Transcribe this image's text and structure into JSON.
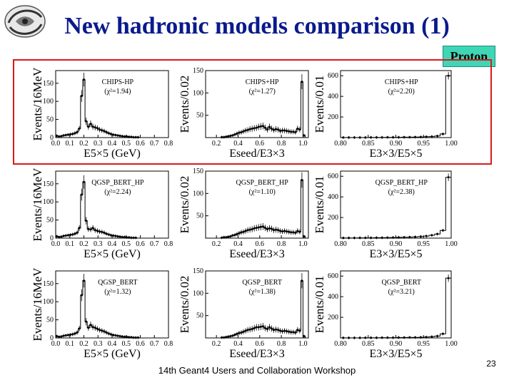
{
  "slide": {
    "title": "New hadronic models comparison (1)",
    "badge": "Proton",
    "footer": "14th Geant4 Users and Collaboration Workshop",
    "page_number": "23"
  },
  "colors": {
    "title": "#0a1a8c",
    "badge_bg": "#3fd6b6",
    "highlight_box": "#d81a1a"
  },
  "icons": {
    "logo": "institution-logo-swirl"
  },
  "chart_data": [
    {
      "type": "histogram",
      "row": 1,
      "col": 1,
      "model": "CHIPS-HP",
      "chi2": "(χ²=1.94)",
      "ylabel": "Events/16MeV",
      "xlabel": "E5×5 (GeV)",
      "xlim": [
        0,
        0.8
      ],
      "ylim": [
        0,
        185
      ],
      "xticks": [
        "0.0",
        "0.1",
        "0.2",
        "0.3",
        "0.4",
        "0.5",
        "0.6",
        "0.7",
        "0.8"
      ],
      "yticks": [
        "0",
        "50",
        "100",
        "150"
      ],
      "x": [
        0.008,
        0.024,
        0.04,
        0.056,
        0.072,
        0.088,
        0.104,
        0.12,
        0.136,
        0.152,
        0.168,
        0.184,
        0.2,
        0.216,
        0.232,
        0.248,
        0.264,
        0.28,
        0.296,
        0.312,
        0.328,
        0.344,
        0.36,
        0.376,
        0.392,
        0.408,
        0.424,
        0.44,
        0.456,
        0.472,
        0.488,
        0.504,
        0.52,
        0.536,
        0.552,
        0.568,
        0.584,
        0.6
      ],
      "y": [
        5,
        3,
        4,
        6,
        7,
        8,
        9,
        10,
        12,
        15,
        25,
        115,
        160,
        45,
        30,
        38,
        30,
        28,
        26,
        22,
        20,
        18,
        15,
        12,
        10,
        8,
        7,
        6,
        5,
        4,
        3,
        3,
        2,
        2,
        1,
        1,
        1,
        0
      ]
    },
    {
      "type": "histogram",
      "row": 1,
      "col": 2,
      "model": "CHIPS+HP",
      "chi2": "(χ²=1.27)",
      "ylabel": "Events/0.02",
      "xlabel": "Eseed/E3×3",
      "xlim": [
        0.1,
        1.05
      ],
      "ylim": [
        0,
        150
      ],
      "xticks": [
        "0.2",
        "0.4",
        "0.6",
        "0.8",
        "1.0"
      ],
      "yticks": [
        "50",
        "100",
        "150"
      ],
      "x": [
        0.11,
        0.13,
        0.15,
        0.17,
        0.19,
        0.21,
        0.23,
        0.25,
        0.27,
        0.29,
        0.31,
        0.33,
        0.35,
        0.37,
        0.39,
        0.41,
        0.43,
        0.45,
        0.47,
        0.49,
        0.51,
        0.53,
        0.55,
        0.57,
        0.59,
        0.61,
        0.63,
        0.65,
        0.67,
        0.69,
        0.71,
        0.73,
        0.75,
        0.77,
        0.79,
        0.81,
        0.83,
        0.85,
        0.87,
        0.89,
        0.91,
        0.93,
        0.95,
        0.97,
        0.99,
        1.01
      ],
      "y": [
        0,
        0,
        0,
        0,
        0,
        0,
        0,
        1,
        1,
        2,
        3,
        4,
        5,
        7,
        9,
        11,
        12,
        14,
        16,
        17,
        19,
        20,
        21,
        22,
        24,
        25,
        26,
        22,
        18,
        24,
        20,
        17,
        19,
        18,
        15,
        16,
        16,
        15,
        14,
        13,
        13,
        12,
        20,
        18,
        125,
        5
      ]
    },
    {
      "type": "histogram",
      "row": 1,
      "col": 3,
      "model": "CHIPS+HP",
      "chi2": "(χ²=2.20)",
      "ylabel": "Events/0.01",
      "xlabel": "E3×3/E5×5",
      "xlim": [
        0.8,
        1.0
      ],
      "ylim": [
        0,
        650
      ],
      "xticks": [
        "0.80",
        "0.85",
        "0.90",
        "0.95",
        "1.00"
      ],
      "yticks": [
        "200",
        "400",
        "600"
      ],
      "x": [
        0.805,
        0.815,
        0.825,
        0.835,
        0.845,
        0.855,
        0.865,
        0.875,
        0.885,
        0.895,
        0.905,
        0.915,
        0.925,
        0.935,
        0.945,
        0.955,
        0.965,
        0.975,
        0.985,
        0.995
      ],
      "y": [
        1,
        1,
        1,
        1,
        1,
        2,
        2,
        2,
        3,
        3,
        3,
        4,
        4,
        5,
        6,
        8,
        10,
        15,
        35,
        600
      ]
    },
    {
      "type": "histogram",
      "row": 2,
      "col": 1,
      "model": "QGSP_BERT_HP",
      "chi2": "(χ²=2.24)",
      "ylabel": "Events/16MeV",
      "xlabel": "E5×5 (GeV)",
      "xlim": [
        0,
        0.8
      ],
      "ylim": [
        0,
        185
      ],
      "xticks": [
        "0.0",
        "0.1",
        "0.2",
        "0.3",
        "0.4",
        "0.5",
        "0.6",
        "0.7",
        "0.8"
      ],
      "yticks": [
        "0",
        "50",
        "100",
        "150"
      ],
      "x": [
        0.008,
        0.024,
        0.04,
        0.056,
        0.072,
        0.088,
        0.104,
        0.12,
        0.136,
        0.152,
        0.168,
        0.184,
        0.2,
        0.216,
        0.232,
        0.248,
        0.264,
        0.28,
        0.296,
        0.312,
        0.328,
        0.344,
        0.36,
        0.376,
        0.392,
        0.408,
        0.424,
        0.44,
        0.456,
        0.472,
        0.488,
        0.504,
        0.52,
        0.536,
        0.552,
        0.568,
        0.584,
        0.6
      ],
      "y": [
        5,
        3,
        4,
        6,
        7,
        8,
        9,
        10,
        12,
        15,
        28,
        120,
        155,
        48,
        25,
        24,
        28,
        22,
        20,
        18,
        17,
        15,
        12,
        10,
        8,
        7,
        6,
        5,
        4,
        3,
        3,
        2,
        2,
        1,
        1,
        1,
        0,
        0
      ]
    },
    {
      "type": "histogram",
      "row": 2,
      "col": 2,
      "model": "QGSP_BERT_HP",
      "chi2": "(χ²=1.10)",
      "ylabel": "Events/0.02",
      "xlabel": "Eseed/E3×3",
      "xlim": [
        0.1,
        1.05
      ],
      "ylim": [
        0,
        150
      ],
      "xticks": [
        "0.2",
        "0.4",
        "0.6",
        "0.8",
        "1.0"
      ],
      "yticks": [
        "50",
        "100",
        "150"
      ],
      "x": [
        0.11,
        0.13,
        0.15,
        0.17,
        0.19,
        0.21,
        0.23,
        0.25,
        0.27,
        0.29,
        0.31,
        0.33,
        0.35,
        0.37,
        0.39,
        0.41,
        0.43,
        0.45,
        0.47,
        0.49,
        0.51,
        0.53,
        0.55,
        0.57,
        0.59,
        0.61,
        0.63,
        0.65,
        0.67,
        0.69,
        0.71,
        0.73,
        0.75,
        0.77,
        0.79,
        0.81,
        0.83,
        0.85,
        0.87,
        0.89,
        0.91,
        0.93,
        0.95,
        0.97,
        0.99,
        1.01
      ],
      "y": [
        0,
        0,
        0,
        0,
        0,
        0,
        0,
        1,
        2,
        2,
        3,
        4,
        6,
        7,
        9,
        11,
        13,
        14,
        16,
        18,
        19,
        20,
        22,
        23,
        24,
        25,
        26,
        23,
        20,
        22,
        21,
        18,
        19,
        18,
        16,
        15,
        16,
        15,
        14,
        13,
        13,
        12,
        16,
        14,
        130,
        4
      ]
    },
    {
      "type": "histogram",
      "row": 2,
      "col": 3,
      "model": "QGSP_BERT_HP",
      "chi2": "(χ²=2.38)",
      "ylabel": "Events/0.01",
      "xlabel": "E3×3/E5×5",
      "xlim": [
        0.8,
        1.0
      ],
      "ylim": [
        0,
        650
      ],
      "xticks": [
        "0.80",
        "0.85",
        "0.90",
        "0.95",
        "1.00"
      ],
      "yticks": [
        "200",
        "400",
        "600"
      ],
      "x": [
        0.805,
        0.815,
        0.825,
        0.835,
        0.845,
        0.855,
        0.865,
        0.875,
        0.885,
        0.895,
        0.905,
        0.915,
        0.925,
        0.935,
        0.945,
        0.955,
        0.965,
        0.975,
        0.985,
        0.995
      ],
      "y": [
        2,
        2,
        2,
        3,
        3,
        3,
        4,
        4,
        5,
        6,
        7,
        8,
        10,
        12,
        15,
        20,
        28,
        40,
        75,
        590
      ]
    },
    {
      "type": "histogram",
      "row": 3,
      "col": 1,
      "model": "QGSP_BERT",
      "chi2": "(χ²=1.32)",
      "ylabel": "Events/16MeV",
      "xlabel": "E5×5 (GeV)",
      "xlim": [
        0,
        0.8
      ],
      "ylim": [
        0,
        185
      ],
      "xticks": [
        "0.0",
        "0.1",
        "0.2",
        "0.3",
        "0.4",
        "0.5",
        "0.6",
        "0.7",
        "0.8"
      ],
      "yticks": [
        "0",
        "50",
        "100",
        "150"
      ],
      "x": [
        0.008,
        0.024,
        0.04,
        0.056,
        0.072,
        0.088,
        0.104,
        0.12,
        0.136,
        0.152,
        0.168,
        0.184,
        0.2,
        0.216,
        0.232,
        0.248,
        0.264,
        0.28,
        0.296,
        0.312,
        0.328,
        0.344,
        0.36,
        0.376,
        0.392,
        0.408,
        0.424,
        0.44,
        0.456,
        0.472,
        0.488,
        0.504,
        0.52,
        0.536,
        0.552,
        0.568,
        0.584,
        0.6
      ],
      "y": [
        5,
        3,
        4,
        6,
        7,
        8,
        9,
        10,
        12,
        15,
        26,
        118,
        158,
        45,
        28,
        36,
        30,
        28,
        25,
        22,
        20,
        18,
        15,
        12,
        10,
        8,
        7,
        6,
        5,
        4,
        3,
        3,
        2,
        2,
        1,
        1,
        1,
        0
      ]
    },
    {
      "type": "histogram",
      "row": 3,
      "col": 2,
      "model": "QGSP_BERT",
      "chi2": "(χ²=1.38)",
      "ylabel": "Events/0.02",
      "xlabel": "Eseed/E3×3",
      "xlim": [
        0.1,
        1.05
      ],
      "ylim": [
        0,
        150
      ],
      "xticks": [
        "0.2",
        "0.4",
        "0.6",
        "0.8",
        "1.0"
      ],
      "yticks": [
        "50",
        "100",
        "150"
      ],
      "x": [
        0.11,
        0.13,
        0.15,
        0.17,
        0.19,
        0.21,
        0.23,
        0.25,
        0.27,
        0.29,
        0.31,
        0.33,
        0.35,
        0.37,
        0.39,
        0.41,
        0.43,
        0.45,
        0.47,
        0.49,
        0.51,
        0.53,
        0.55,
        0.57,
        0.59,
        0.61,
        0.63,
        0.65,
        0.67,
        0.69,
        0.71,
        0.73,
        0.75,
        0.77,
        0.79,
        0.81,
        0.83,
        0.85,
        0.87,
        0.89,
        0.91,
        0.93,
        0.95,
        0.97,
        0.99,
        1.01
      ],
      "y": [
        0,
        0,
        0,
        0,
        0,
        0,
        0,
        1,
        1,
        2,
        3,
        4,
        5,
        7,
        9,
        11,
        12,
        14,
        16,
        18,
        19,
        20,
        22,
        24,
        24,
        25,
        26,
        22,
        20,
        24,
        21,
        18,
        19,
        18,
        16,
        15,
        16,
        15,
        14,
        13,
        13,
        12,
        18,
        16,
        128,
        4
      ]
    },
    {
      "type": "histogram",
      "row": 3,
      "col": 3,
      "model": "QGSP_BERT",
      "chi2": "(χ²=3.21)",
      "ylabel": "Events/0.01",
      "xlabel": "E3×3/E5×5",
      "xlim": [
        0.8,
        1.0
      ],
      "ylim": [
        0,
        650
      ],
      "xticks": [
        "0.80",
        "0.85",
        "0.90",
        "0.95",
        "1.00"
      ],
      "yticks": [
        "200",
        "400",
        "600"
      ],
      "x": [
        0.805,
        0.815,
        0.825,
        0.835,
        0.845,
        0.855,
        0.865,
        0.875,
        0.885,
        0.895,
        0.905,
        0.915,
        0.925,
        0.935,
        0.945,
        0.955,
        0.965,
        0.975,
        0.985,
        0.995
      ],
      "y": [
        1,
        1,
        1,
        1,
        2,
        2,
        2,
        3,
        3,
        3,
        4,
        4,
        5,
        5,
        6,
        8,
        12,
        18,
        40,
        580
      ]
    }
  ]
}
